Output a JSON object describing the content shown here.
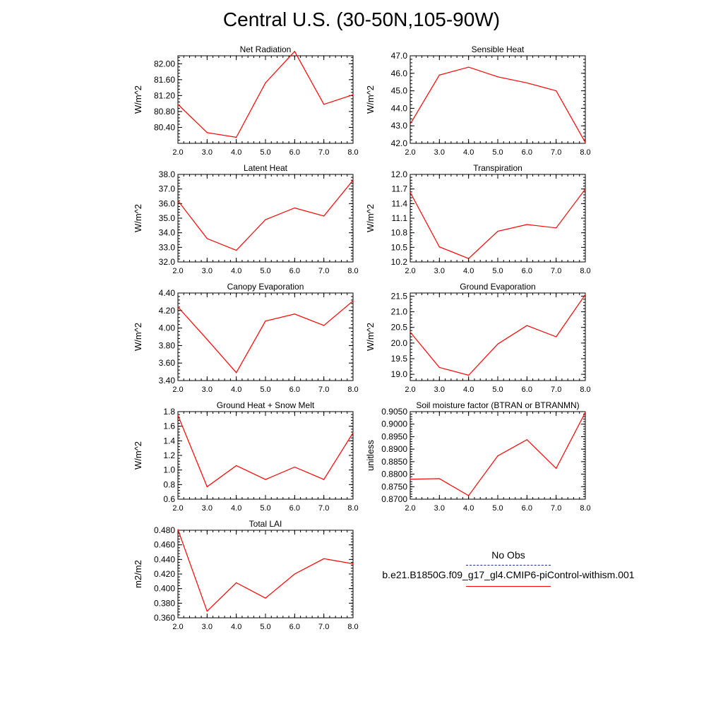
{
  "title": "Central U.S. (30-50N,105-90W)",
  "legend": {
    "obs_label": "No Obs",
    "obs_color": "#1a2a9c",
    "model_label": "b.e21.B1850G.f09_g17_gl4.CMIP6-piControl-withism.001",
    "model_color": "#ff0000"
  },
  "chart_data": [
    {
      "type": "line",
      "title": "Net Radiation",
      "ylabel": "W/m^2",
      "x": [
        2,
        3,
        4,
        5,
        6,
        7,
        8
      ],
      "xlim": [
        2,
        8
      ],
      "xticklabels": [
        "2.0",
        "3.0",
        "4.0",
        "5.0",
        "6.0",
        "7.0",
        "8.0"
      ],
      "ylim": [
        80.0,
        82.2
      ],
      "yticks": [
        80.4,
        80.8,
        81.2,
        81.6,
        82.0
      ],
      "yticklabels": [
        "80.40",
        "80.80",
        "81.20",
        "81.60",
        "82.00"
      ],
      "series": [
        {
          "values": [
            80.98,
            80.27,
            80.15,
            81.52,
            82.31,
            80.98,
            81.22
          ]
        }
      ]
    },
    {
      "type": "line",
      "title": "Sensible Heat",
      "ylabel": "W/m^2",
      "x": [
        2,
        3,
        4,
        5,
        6,
        7,
        8
      ],
      "xlim": [
        2,
        8
      ],
      "xticklabels": [
        "2.0",
        "3.0",
        "4.0",
        "5.0",
        "6.0",
        "7.0",
        "8.0"
      ],
      "ylim": [
        42.0,
        47.0
      ],
      "yticks": [
        42,
        43,
        44,
        45,
        46,
        47
      ],
      "yticklabels": [
        "42.0",
        "43.0",
        "44.0",
        "45.0",
        "46.0",
        "47.0"
      ],
      "series": [
        {
          "values": [
            43.1,
            45.9,
            46.35,
            45.8,
            45.45,
            45.0,
            42.05
          ]
        }
      ]
    },
    {
      "type": "line",
      "title": "Latent Heat",
      "ylabel": "W/m^2",
      "x": [
        2,
        3,
        4,
        5,
        6,
        7,
        8
      ],
      "xlim": [
        2,
        8
      ],
      "xticklabels": [
        "2.0",
        "3.0",
        "4.0",
        "5.0",
        "6.0",
        "7.0",
        "8.0"
      ],
      "ylim": [
        32.0,
        38.0
      ],
      "yticks": [
        32,
        33,
        34,
        35,
        36,
        37,
        38
      ],
      "yticklabels": [
        "32.0",
        "33.0",
        "34.0",
        "35.0",
        "36.0",
        "37.0",
        "38.0"
      ],
      "series": [
        {
          "values": [
            36.2,
            33.6,
            32.8,
            34.9,
            35.7,
            35.15,
            37.6
          ]
        }
      ]
    },
    {
      "type": "line",
      "title": "Transpiration",
      "ylabel": "W/m^2",
      "x": [
        2,
        3,
        4,
        5,
        6,
        7,
        8
      ],
      "xlim": [
        2,
        8
      ],
      "xticklabels": [
        "2.0",
        "3.0",
        "4.0",
        "5.0",
        "6.0",
        "7.0",
        "8.0"
      ],
      "ylim": [
        10.2,
        12.0
      ],
      "yticks": [
        10.2,
        10.5,
        10.8,
        11.1,
        11.4,
        11.7,
        12.0
      ],
      "yticklabels": [
        "10.2",
        "10.5",
        "10.8",
        "11.1",
        "11.4",
        "11.7",
        "12.0"
      ],
      "series": [
        {
          "values": [
            11.63,
            10.51,
            10.27,
            10.83,
            10.97,
            10.9,
            11.7
          ]
        }
      ]
    },
    {
      "type": "line",
      "title": "Canopy Evaporation",
      "ylabel": "W/m^2",
      "x": [
        2,
        3,
        4,
        5,
        6,
        7,
        8
      ],
      "xlim": [
        2,
        8
      ],
      "xticklabels": [
        "2.0",
        "3.0",
        "4.0",
        "5.0",
        "6.0",
        "7.0",
        "8.0"
      ],
      "ylim": [
        3.4,
        4.4
      ],
      "yticks": [
        3.4,
        3.6,
        3.8,
        4.0,
        4.2,
        4.4
      ],
      "yticklabels": [
        "3.40",
        "3.60",
        "3.80",
        "4.00",
        "4.20",
        "4.40"
      ],
      "series": [
        {
          "values": [
            4.24,
            3.87,
            3.49,
            4.08,
            4.16,
            4.03,
            4.31
          ]
        }
      ]
    },
    {
      "type": "line",
      "title": "Ground Evaporation",
      "ylabel": "W/m^2",
      "x": [
        2,
        3,
        4,
        5,
        6,
        7,
        8
      ],
      "xlim": [
        2,
        8
      ],
      "xticklabels": [
        "2.0",
        "3.0",
        "4.0",
        "5.0",
        "6.0",
        "7.0",
        "8.0"
      ],
      "ylim": [
        18.8,
        21.6
      ],
      "yticks": [
        19.0,
        19.5,
        20.0,
        20.5,
        21.0,
        21.5
      ],
      "yticklabels": [
        "19.0",
        "19.5",
        "20.0",
        "20.5",
        "21.0",
        "21.5"
      ],
      "series": [
        {
          "values": [
            20.35,
            19.22,
            18.97,
            19.97,
            20.56,
            20.2,
            21.55
          ]
        }
      ]
    },
    {
      "type": "line",
      "title": "Ground Heat + Snow Melt",
      "ylabel": "W/m^2",
      "x": [
        2,
        3,
        4,
        5,
        6,
        7,
        8
      ],
      "xlim": [
        2,
        8
      ],
      "xticklabels": [
        "2.0",
        "3.0",
        "4.0",
        "5.0",
        "6.0",
        "7.0",
        "8.0"
      ],
      "ylim": [
        0.6,
        1.8
      ],
      "yticks": [
        0.6,
        0.8,
        1.0,
        1.2,
        1.4,
        1.6,
        1.8
      ],
      "yticklabels": [
        "0.6",
        "0.8",
        "1.0",
        "1.2",
        "1.4",
        "1.6",
        "1.8"
      ],
      "series": [
        {
          "values": [
            1.75,
            0.77,
            1.06,
            0.87,
            1.04,
            0.87,
            1.51
          ]
        }
      ]
    },
    {
      "type": "line",
      "title": "Soil moisture factor (BTRAN or BTRANMN)",
      "ylabel": "unitless",
      "x": [
        2,
        3,
        4,
        5,
        6,
        7,
        8
      ],
      "xlim": [
        2,
        8
      ],
      "xticklabels": [
        "2.0",
        "3.0",
        "4.0",
        "5.0",
        "6.0",
        "7.0",
        "8.0"
      ],
      "ylim": [
        0.87,
        0.905
      ],
      "yticks": [
        0.87,
        0.875,
        0.88,
        0.885,
        0.89,
        0.895,
        0.9,
        0.905
      ],
      "yticklabels": [
        "0.8700",
        "0.8750",
        "0.8800",
        "0.8850",
        "0.8900",
        "0.8950",
        "0.9000",
        "0.9050"
      ],
      "series": [
        {
          "values": [
            0.878,
            0.8782,
            0.8714,
            0.8873,
            0.8938,
            0.8823,
            0.9047
          ]
        }
      ]
    },
    {
      "type": "line",
      "title": "Total LAI",
      "ylabel": "m2/m2",
      "x": [
        2,
        3,
        4,
        5,
        6,
        7,
        8
      ],
      "xlim": [
        2,
        8
      ],
      "xticklabels": [
        "2.0",
        "3.0",
        "4.0",
        "5.0",
        "6.0",
        "7.0",
        "8.0"
      ],
      "ylim": [
        0.36,
        0.48
      ],
      "yticks": [
        0.36,
        0.38,
        0.4,
        0.42,
        0.44,
        0.46,
        0.48
      ],
      "yticklabels": [
        "0.360",
        "0.380",
        "0.400",
        "0.420",
        "0.440",
        "0.460",
        "0.480"
      ],
      "series": [
        {
          "values": [
            0.481,
            0.369,
            0.408,
            0.387,
            0.42,
            0.441,
            0.434
          ]
        }
      ]
    }
  ]
}
